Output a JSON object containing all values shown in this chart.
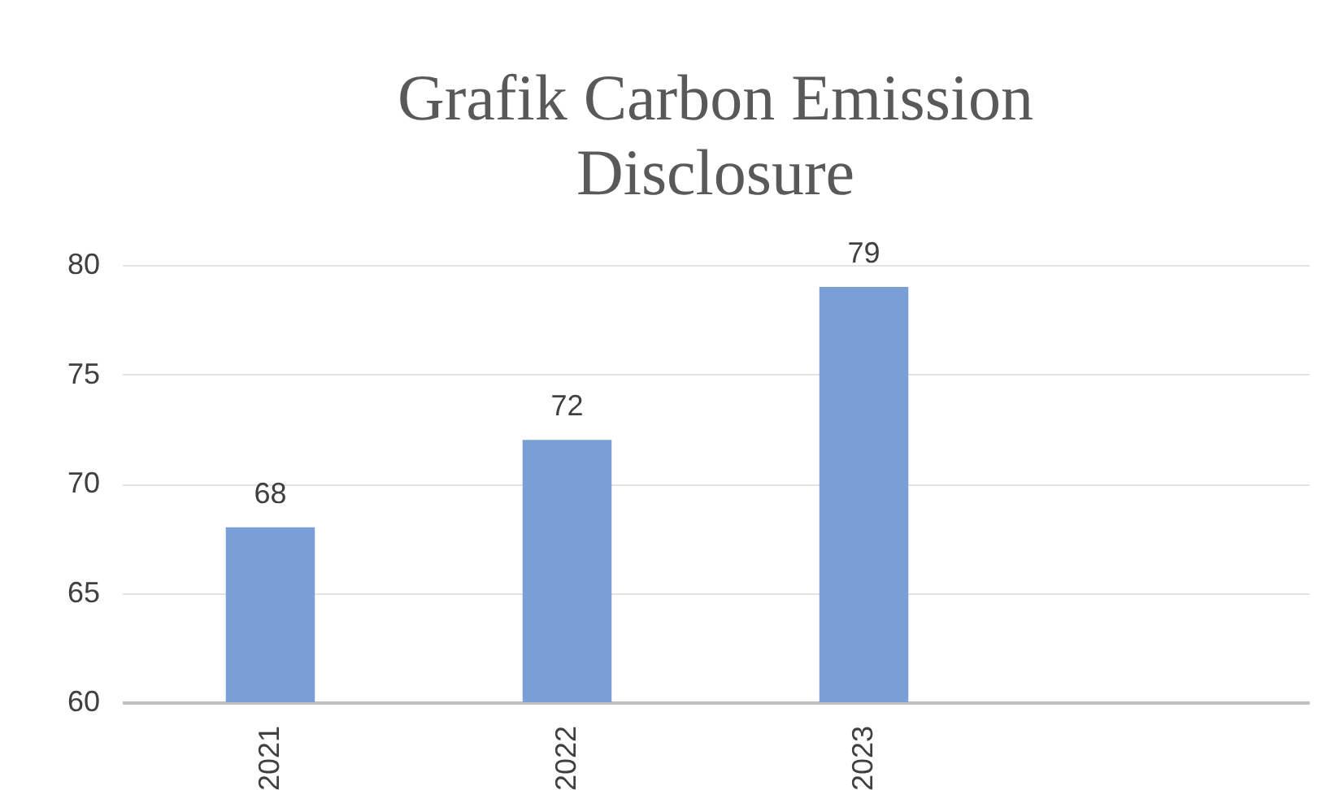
{
  "chart_data": {
    "type": "bar",
    "title": "Grafik Carbon Emission Disclosure",
    "categories": [
      "2021",
      "2022",
      "2023",
      null
    ],
    "values": [
      68,
      72,
      79,
      null
    ],
    "color": "#7a9fd7",
    "ylim": [
      60,
      80
    ],
    "yticks": [
      60,
      65,
      70,
      75,
      80
    ],
    "grid": "y",
    "data_labels": true
  }
}
